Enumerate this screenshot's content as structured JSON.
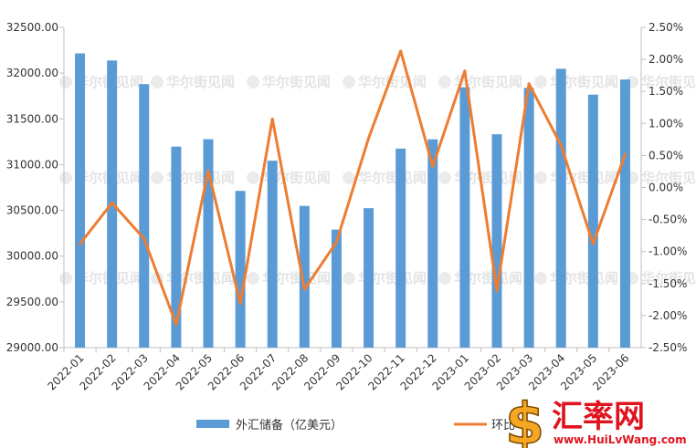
{
  "chart_data": {
    "type": "bar",
    "categories": [
      "2022-01",
      "2022-02",
      "2022-03",
      "2022-04",
      "2022-05",
      "2022-06",
      "2022-07",
      "2022-08",
      "2022-09",
      "2022-10",
      "2022-11",
      "2022-12",
      "2023-01",
      "2023-02",
      "2023-03",
      "2023-04",
      "2023-05",
      "2023-06"
    ],
    "series": [
      {
        "name": "外汇储备（亿美元）",
        "type": "bar",
        "axis": "left",
        "color": "#5b9bd5",
        "values": [
          32216,
          32138,
          31880,
          31197,
          31278,
          30713,
          31043,
          30549,
          30290,
          30524,
          31175,
          31277,
          31845,
          31332,
          31839,
          32048,
          31765,
          31930
        ]
      },
      {
        "name": "环比",
        "type": "line",
        "axis": "right",
        "color": "#ed7d31",
        "values": [
          -0.88,
          -0.24,
          -0.8,
          -2.14,
          0.26,
          -1.81,
          1.07,
          -1.59,
          -0.85,
          0.77,
          2.13,
          0.33,
          1.82,
          -1.61,
          1.62,
          0.66,
          -0.88,
          0.52
        ]
      }
    ],
    "y_left": {
      "ylim": [
        29000,
        32500
      ],
      "ticks": [
        "29000.00",
        "29500.00",
        "30000.00",
        "30500.00",
        "31000.00",
        "31500.00",
        "32000.00",
        "32500.00"
      ]
    },
    "y_right": {
      "ylim": [
        -2.5,
        2.5
      ],
      "ticks": [
        "-2.50%",
        "-2.00%",
        "-1.50%",
        "-1.00%",
        "-0.50%",
        "0.00%",
        "0.50%",
        "1.00%",
        "1.50%",
        "2.00%",
        "2.50%"
      ]
    },
    "grid": false,
    "legend_position": "bottom",
    "title": "",
    "xlabel": "",
    "ylabel": ""
  },
  "legend": {
    "bar_label": "外汇储备（亿美元）",
    "line_label": "环比"
  },
  "watermark": {
    "text": "华尔街见闻"
  },
  "logo": {
    "symbol": "$",
    "name": "汇率网",
    "url": "www.HuiLvWang.com"
  }
}
